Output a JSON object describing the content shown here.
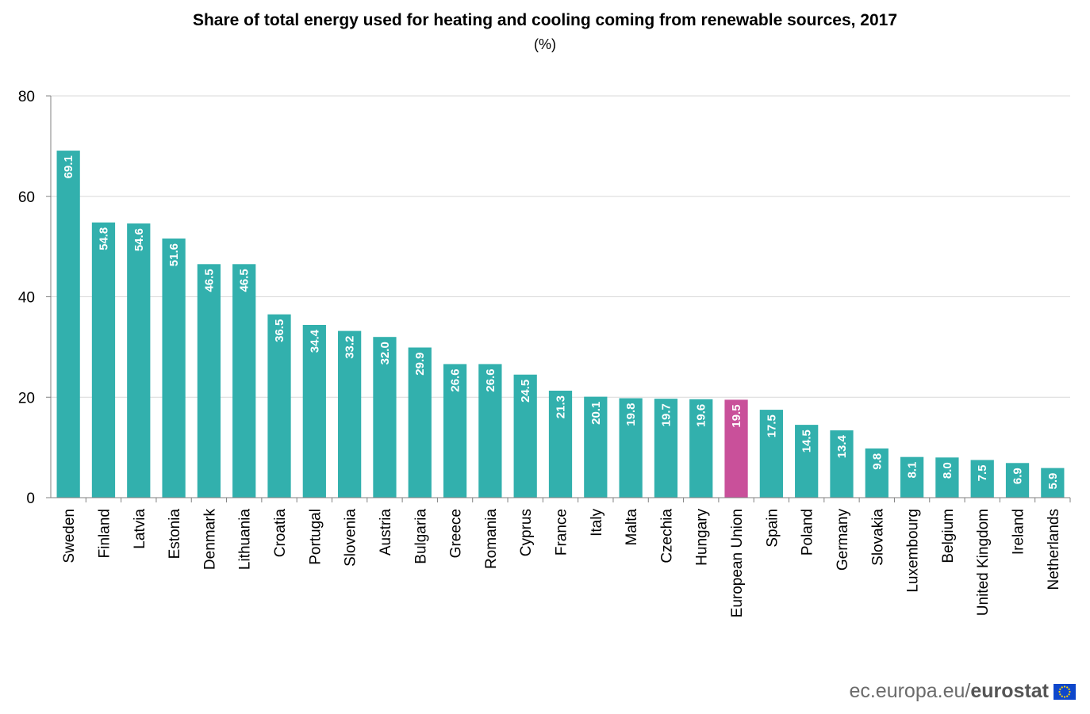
{
  "chart_data": {
    "type": "bar",
    "title": "Share of total energy used for heating and cooling coming from renewable sources, 2017",
    "subtitle": "(%)",
    "xlabel": "",
    "ylabel": "",
    "ylim": [
      0,
      80
    ],
    "yticks": [
      "0",
      "20",
      "40",
      "60",
      "80"
    ],
    "grid": true,
    "categories": [
      "Sweden",
      "Finland",
      "Latvia",
      "Estonia",
      "Denmark",
      "Lithuania",
      "Croatia",
      "Portugal",
      "Slovenia",
      "Austria",
      "Bulgaria",
      "Greece",
      "Romania",
      "Cyprus",
      "France",
      "Italy",
      "Malta",
      "Czechia",
      "Hungary",
      "European Union",
      "Spain",
      "Poland",
      "Germany",
      "Slovakia",
      "Luxembourg",
      "Belgium",
      "United Kingdom",
      "Ireland",
      "Netherlands"
    ],
    "values": [
      69.1,
      54.8,
      54.6,
      51.6,
      46.5,
      46.5,
      36.5,
      34.4,
      33.2,
      32.0,
      29.9,
      26.6,
      26.6,
      24.5,
      21.3,
      20.1,
      19.8,
      19.7,
      19.6,
      19.5,
      17.5,
      14.5,
      13.4,
      9.8,
      8.1,
      8.0,
      7.5,
      6.9,
      5.9
    ],
    "value_labels": [
      "69.1",
      "54.8",
      "54.6",
      "51.6",
      "46.5",
      "46.5",
      "36.5",
      "34.4",
      "33.2",
      "32.0",
      "29.9",
      "26.6",
      "26.6",
      "24.5",
      "21.3",
      "20.1",
      "19.8",
      "19.7",
      "19.6",
      "19.5",
      "17.5",
      "14.5",
      "13.4",
      "9.8",
      "8.1",
      "8.0",
      "7.5",
      "6.9",
      "5.9"
    ],
    "highlight": "European Union",
    "colors": {
      "bar": "#32b0ad",
      "highlight": "#c9509a",
      "grid": "#d9d9d9",
      "axis": "#808080"
    }
  },
  "footer": {
    "url": "ec.europa.eu/",
    "brand": "eurostat"
  },
  "colors": {
    "flag_blue": "#0e47cb",
    "flag_star": "#ffd700"
  }
}
